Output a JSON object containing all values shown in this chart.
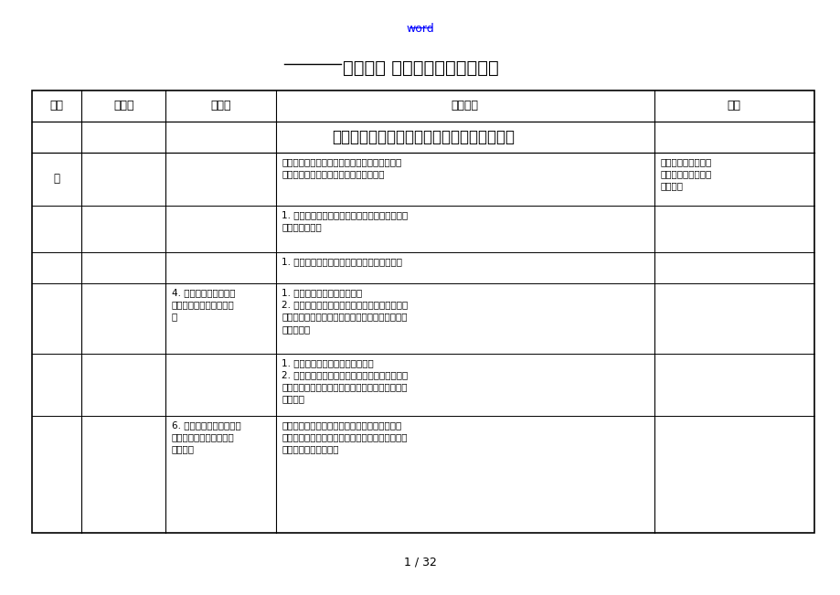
{
  "bg_color": "#ffffff",
  "page_width": 9.2,
  "page_height": 6.51,
  "top_link_text": "word",
  "top_link_color": "#0000ff",
  "title_part1": "电力建设",
  "title_part2": " 危险点分析及控制措施",
  "title_fontsize": 14,
  "page_number": "1 / 32",
  "header_row": [
    "序号",
    "工作容",
    "危险点",
    "控制措施",
    "依据"
  ],
  "section_title": "架空电力线路工程施工危险点分析及控制措施",
  "rows": [
    {
      "seq": "一",
      "work": "",
      "danger": "",
      "control": "基础施工前对施工人员进行安全技术次底，没进\n行安全技术交底，施工人员有权拒绝施工",
      "basis": "《电力建设安全工作\n规程》（架空输电线\n路部分）"
    },
    {
      "seq": "",
      "work": "",
      "danger": "",
      "control": "1. 在林区施工时必须遵守当地的林区防火规定，\n林区禁止吸烟。",
      "basis": ""
    },
    {
      "seq": "",
      "work": "",
      "danger": "",
      "control": "1. 工作票中要明确规定基坑许多人同时作业；",
      "basis": ""
    },
    {
      "seq": "",
      "work": "",
      "danger": "4. 开春后土质松软；流\n沙坑施工时无专人安全监\n护",
      "control": "1. 开春化冻后土质容易塌方；\n2. 流沙坑也容易塌方。以上这两种情况施工时应\n派专人安全监护，随时检查坑是否有裂纹现象，做\n到安全监护",
      "basis": ""
    },
    {
      "seq": "",
      "work": "",
      "danger": "",
      "control": "1. 土质不符合要求不许掏挖施工；\n2. 为防止掏挖基础施工时塌方，必须使用沉降式\n挡土模板，上、下坑时使用绳索或梯子，并没有安\n全监护人",
      "basis": ""
    },
    {
      "seq": "",
      "work": "",
      "danger": "6. 基坑开挖、支模找正，\n浇制时基面或坑口边有土\n块、活石",
      "control": "基坑开挖、支模桩正或混凝土浇制时应将基面上\n浮石、松石或坑边浮石、土块清除掉，避免施工时\n活石掉下砸伤施工人员",
      "basis": ""
    }
  ],
  "font_color": "#000000",
  "table_border_color": "#000000",
  "inner_border_color": "#000000",
  "text_fontsize": 7.5,
  "header_fontsize": 9,
  "section_fontsize": 12
}
